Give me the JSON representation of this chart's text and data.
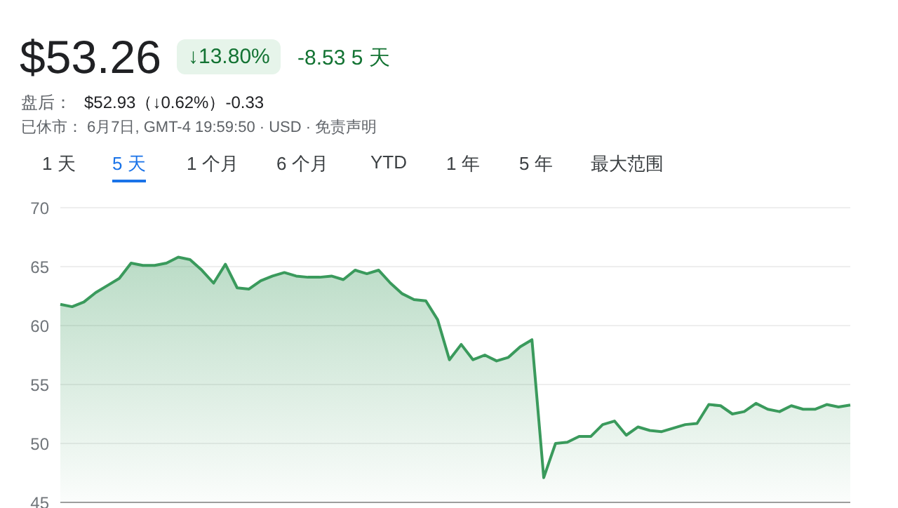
{
  "chart_data": {
    "type": "area",
    "title": "$53.26",
    "annotations": [
      "↓13.80%",
      "-8.53 5 天",
      "盘后：",
      "$52.93（↓0.62%）-0.33",
      "已休市：",
      "6月7日, GMT-4 19:59:50 · USD · 免责声明",
      "1 天",
      "5 天",
      "1 个月",
      "6 个月",
      "YTD",
      "1 年",
      "5 年",
      "最大范围"
    ],
    "categories": [
      null,
      null,
      null,
      null,
      null,
      null,
      null,
      null,
      null,
      null,
      null,
      null,
      null,
      null,
      null,
      null,
      null,
      null,
      null,
      null,
      null,
      null,
      null,
      null,
      null,
      null,
      null,
      null,
      null,
      null,
      null,
      null,
      null,
      null,
      null,
      null,
      null,
      null,
      null,
      null,
      null,
      null,
      null,
      null,
      null,
      null,
      null,
      null,
      null,
      null,
      null,
      null,
      null,
      null,
      null,
      null,
      null,
      null,
      null,
      null,
      null,
      null,
      null,
      null,
      null,
      null,
      null,
      null
    ],
    "series": [
      {
        "color": "#3a9a5c",
        "values": [
          61.8,
          61.6,
          62.0,
          62.8,
          63.4,
          64.0,
          65.3,
          65.1,
          65.1,
          65.3,
          65.8,
          65.6,
          64.7,
          63.6,
          65.2,
          63.2,
          63.1,
          63.8,
          64.2,
          64.5,
          64.2,
          64.1,
          64.1,
          64.2,
          63.9,
          64.7,
          64.4,
          64.7,
          63.6,
          62.7,
          62.2,
          62.1,
          60.5,
          57.1,
          58.4,
          57.1,
          57.5,
          57.0,
          57.3,
          58.2,
          58.8,
          47.1,
          50.0,
          50.1,
          50.6,
          50.6,
          51.6,
          51.9,
          50.7,
          51.4,
          51.1,
          51.0,
          51.3,
          51.6,
          51.7,
          53.3,
          53.2,
          52.5,
          52.7,
          53.4,
          52.9,
          52.7,
          53.2,
          52.9,
          52.9,
          53.3,
          53.1,
          53.26
        ]
      }
    ],
    "ylim": [
      45,
      70
    ],
    "yticks": [
      45,
      50,
      55,
      60,
      65,
      70
    ],
    "grid": "y",
    "legend": false
  }
}
